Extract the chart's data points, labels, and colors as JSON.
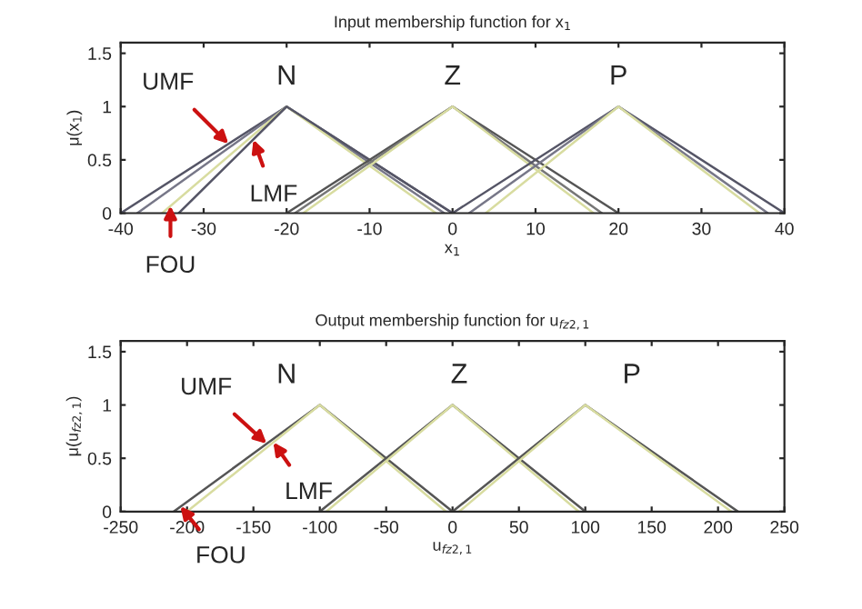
{
  "chart_data": [
    {
      "type": "line",
      "title": "Input membership function for x$_{1}$",
      "xlabel": "x$_{1}$",
      "ylabel": "μ(x$_{1}$)",
      "xlim": [
        -40,
        40
      ],
      "xticks": [
        -40,
        -30,
        -20,
        -10,
        0,
        10,
        20,
        30,
        40
      ],
      "ylim": [
        0,
        1.6
      ],
      "yticks": [
        0,
        0.5,
        1,
        1.5
      ],
      "grid": false,
      "legend": false,
      "series": [
        {
          "color": "#555566",
          "x": [
            -40,
            -20,
            0
          ],
          "values": [
            0,
            1,
            0
          ]
        },
        {
          "color": "#777788",
          "x": [
            -38,
            -20,
            -1
          ],
          "values": [
            0,
            1,
            0
          ]
        },
        {
          "color": "#d8dca0",
          "x": [
            -35,
            -20,
            -2
          ],
          "values": [
            0,
            1,
            0
          ]
        },
        {
          "color": "#555566",
          "x": [
            -33,
            -20,
            0
          ],
          "values": [
            0,
            1,
            0
          ]
        },
        {
          "color": "#555555",
          "x": [
            -20,
            0,
            20
          ],
          "values": [
            0,
            1,
            0
          ]
        },
        {
          "color": "#777777",
          "x": [
            -19,
            0,
            18
          ],
          "values": [
            0,
            1,
            0
          ]
        },
        {
          "color": "#d8dca0",
          "x": [
            -18,
            0,
            17
          ],
          "values": [
            0,
            1,
            0
          ]
        },
        {
          "color": "#555566",
          "x": [
            0,
            20,
            40
          ],
          "values": [
            0,
            1,
            0
          ]
        },
        {
          "color": "#777788",
          "x": [
            2,
            20,
            38
          ],
          "values": [
            0,
            1,
            0
          ]
        },
        {
          "color": "#d8dca0",
          "x": [
            4,
            20,
            37
          ],
          "values": [
            0,
            1,
            0
          ]
        }
      ],
      "annotations": [
        "N",
        "Z",
        "P",
        {
          "text": "UMF",
          "x": -27,
          "y": 0.65
        },
        {
          "text": "LMF",
          "x": -24,
          "y": 0.69
        },
        {
          "text": "FOU",
          "x": -34,
          "y": 0.07
        }
      ]
    },
    {
      "type": "line",
      "title": "Output membership function for u$_{fz2,1}$",
      "xlabel": "u$_{fz2,1}$",
      "ylabel": "μ(u$_{fz2,1}$)",
      "xlim": [
        -250,
        250
      ],
      "xticks": [
        -250,
        -200,
        -150,
        -100,
        -50,
        0,
        50,
        100,
        150,
        200,
        250
      ],
      "ylim": [
        0,
        1.6
      ],
      "yticks": [
        0,
        0.5,
        1,
        1.5
      ],
      "grid": false,
      "legend": false,
      "series": [
        {
          "color": "#555555",
          "x": [
            -210,
            -100,
            0
          ],
          "values": [
            0,
            1,
            0
          ]
        },
        {
          "color": "#d8dca0",
          "x": [
            -200,
            -100,
            -5
          ],
          "values": [
            0,
            1,
            0
          ]
        },
        {
          "color": "#555555",
          "x": [
            -100,
            0,
            100
          ],
          "values": [
            0,
            1,
            0
          ]
        },
        {
          "color": "#d8dca0",
          "x": [
            -95,
            0,
            95
          ],
          "values": [
            0,
            1,
            0
          ]
        },
        {
          "color": "#555555",
          "x": [
            0,
            100,
            215
          ],
          "values": [
            0,
            1,
            0
          ]
        },
        {
          "color": "#d8dca0",
          "x": [
            5,
            100,
            210
          ],
          "values": [
            0,
            1,
            0
          ]
        }
      ],
      "annotations": [
        "N",
        "Z",
        "P",
        {
          "text": "UMF",
          "x": -140,
          "y": 0.636
        },
        {
          "text": "LMF",
          "x": -135,
          "y": 0.65
        },
        {
          "text": "FOU",
          "x": -205,
          "y": 0.05
        }
      ]
    }
  ]
}
